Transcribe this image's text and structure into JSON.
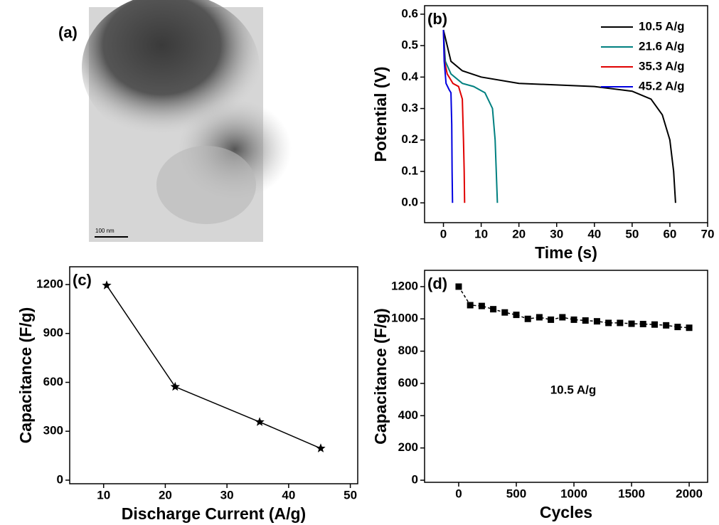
{
  "chart_data": [
    {
      "type": "image",
      "label": "(a)",
      "scale_bar": "100 nm"
    },
    {
      "type": "line",
      "label": "(b)",
      "xlabel": "Time (s)",
      "ylabel": "Potential (V)",
      "xlim": [
        -5,
        70
      ],
      "ylim": [
        -0.063,
        0.627
      ],
      "xticks": [
        0,
        10,
        20,
        30,
        40,
        50,
        60,
        70
      ],
      "yticks": [
        {
          "value": 0,
          "label": "0.0"
        },
        0.1,
        0.2,
        0.3,
        0.4,
        0.5,
        0.6
      ],
      "legend": "upper right",
      "series": [
        {
          "name": "10.5 A/g",
          "color": "#000000",
          "x": [
            0,
            2,
            5,
            10,
            20,
            30,
            40,
            50,
            55,
            58,
            60,
            61,
            61.5
          ],
          "values": [
            0.55,
            0.45,
            0.42,
            0.4,
            0.38,
            0.375,
            0.37,
            0.355,
            0.33,
            0.28,
            0.2,
            0.1,
            0
          ]
        },
        {
          "name": "21.6 A/g",
          "color": "#008080",
          "x": [
            0,
            0.5,
            2,
            5,
            8,
            11,
            13,
            13.7,
            14,
            14.3
          ],
          "values": [
            0.55,
            0.45,
            0.41,
            0.38,
            0.37,
            0.35,
            0.3,
            0.2,
            0.1,
            0
          ]
        },
        {
          "name": "35.3 A/g",
          "color": "#e00000",
          "x": [
            0,
            0.3,
            1,
            2.5,
            4,
            5,
            5.3,
            5.5,
            5.6
          ],
          "values": [
            0.55,
            0.45,
            0.41,
            0.38,
            0.37,
            0.33,
            0.2,
            0.1,
            0
          ]
        },
        {
          "name": "45.2 A/g",
          "color": "#0000e0",
          "x": [
            0,
            0.2,
            0.7,
            1.5,
            2,
            2.2,
            2.3,
            2.4
          ],
          "values": [
            0.55,
            0.45,
            0.38,
            0.36,
            0.35,
            0.25,
            0.1,
            0
          ]
        }
      ]
    },
    {
      "type": "line",
      "label": "(c)",
      "xlabel": "Discharge Current (A/g)",
      "ylabel": "Capacitance (F/g)",
      "xlim": [
        4.5,
        51.2
      ],
      "ylim": [
        -22,
        1309
      ],
      "xticks": [
        10,
        20,
        30,
        40,
        50
      ],
      "yticks": [
        0,
        300,
        600,
        900,
        1200
      ],
      "marker": "star",
      "color": "#000000",
      "x": [
        10.5,
        21.6,
        35.3,
        45.2
      ],
      "values": [
        1195,
        573,
        357,
        195
      ]
    },
    {
      "type": "line",
      "label": "(d)",
      "xlabel": "Cycles",
      "ylabel": "Capacitance (F/g)",
      "xlim": [
        -296,
        2160
      ],
      "ylim": [
        -13,
        1301
      ],
      "xticks": [
        0,
        500,
        1000,
        1500,
        2000
      ],
      "yticks": [
        0,
        200,
        400,
        600,
        800,
        1000,
        1200
      ],
      "marker": "square",
      "line_style": "dashed",
      "color": "#000000",
      "annotation": "10.5 A/g",
      "x": [
        0,
        100,
        200,
        300,
        400,
        500,
        600,
        700,
        800,
        900,
        1000,
        1100,
        1200,
        1300,
        1400,
        1500,
        1600,
        1700,
        1800,
        1900,
        2000
      ],
      "values": [
        1200,
        1085,
        1080,
        1060,
        1040,
        1025,
        1000,
        1010,
        995,
        1010,
        995,
        990,
        985,
        975,
        975,
        970,
        968,
        965,
        960,
        950,
        945
      ]
    }
  ]
}
